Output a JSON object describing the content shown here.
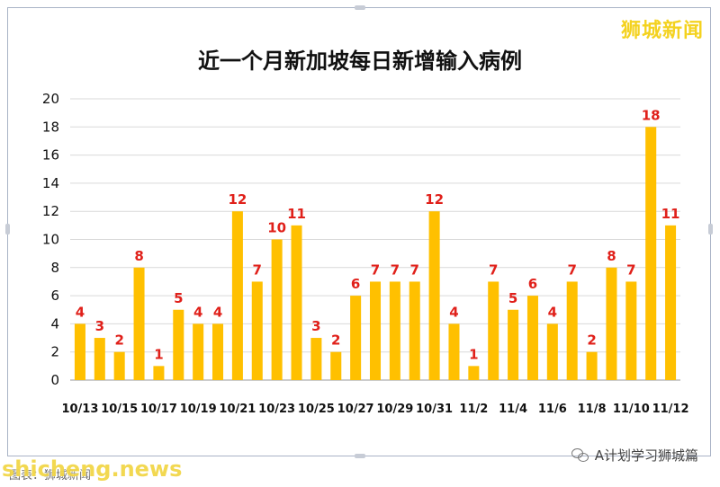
{
  "title": "近一个月新加坡每日新增输入病例",
  "brand": "狮城新闻",
  "watermark": "shicheng.news",
  "source": "图表：狮城新闻",
  "wechat_account": "A计划学习狮城篇",
  "chart_data": {
    "type": "bar",
    "title": "近一个月新加坡每日新增输入病例",
    "xlabel": "",
    "ylabel": "",
    "ylim": [
      0,
      20
    ],
    "yticks": [
      0,
      2,
      4,
      6,
      8,
      10,
      12,
      14,
      16,
      18,
      20
    ],
    "grid": true,
    "bar_color": "#FFC000",
    "label_color": "#E0201A",
    "categories": [
      "10/13",
      "10/14",
      "10/15",
      "10/16",
      "10/17",
      "10/18",
      "10/19",
      "10/20",
      "10/21",
      "10/22",
      "10/23",
      "10/24",
      "10/25",
      "10/26",
      "10/27",
      "10/28",
      "10/29",
      "10/30",
      "10/31",
      "11/1",
      "11/2",
      "11/3",
      "11/4",
      "11/5",
      "11/6",
      "11/7",
      "11/8",
      "11/9",
      "11/10",
      "11/11",
      "11/12"
    ],
    "tick_labels": [
      "10/13",
      "10/15",
      "10/17",
      "10/19",
      "10/21",
      "10/23",
      "10/25",
      "10/27",
      "10/29",
      "10/31",
      "11/2",
      "11/4",
      "11/6",
      "11/8",
      "11/10",
      "11/12"
    ],
    "values": [
      4,
      3,
      2,
      8,
      1,
      5,
      4,
      4,
      12,
      7,
      10,
      11,
      3,
      2,
      6,
      7,
      7,
      7,
      12,
      4,
      1,
      7,
      5,
      6,
      4,
      7,
      2,
      8,
      7,
      18,
      11
    ]
  }
}
